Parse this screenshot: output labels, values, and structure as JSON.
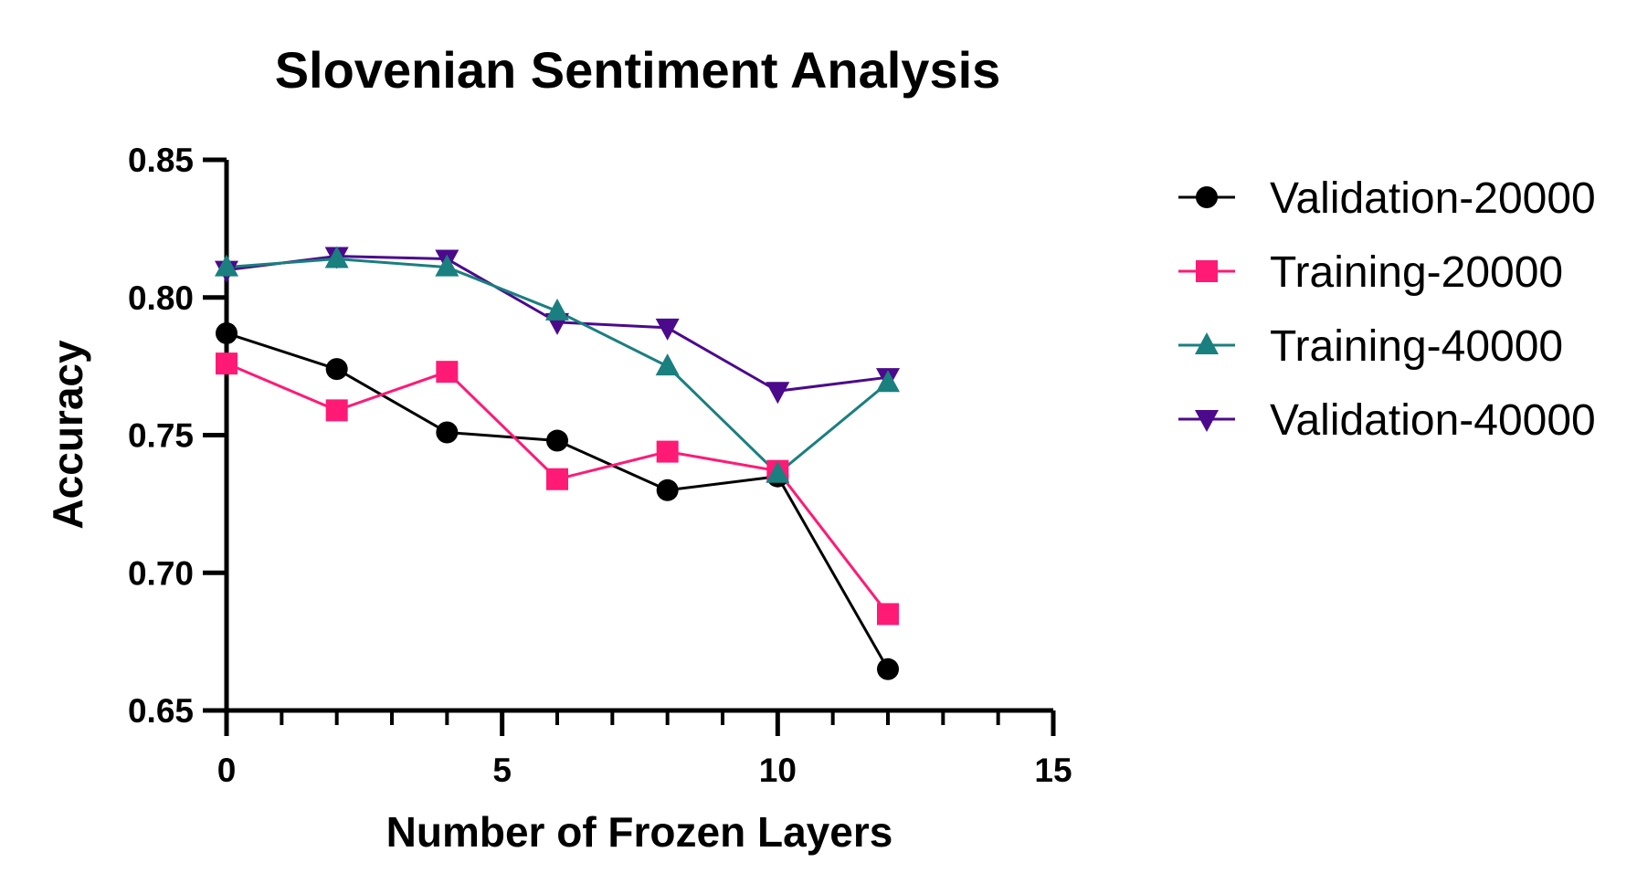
{
  "chart_data": {
    "type": "line",
    "title": "Slovenian Sentiment Analysis",
    "xlabel": "Number of Frozen  Layers",
    "ylabel": "Accuracy",
    "xlim": [
      0,
      15
    ],
    "ylim": [
      0.65,
      0.85
    ],
    "x_ticks": [
      "0",
      "5",
      "10",
      "15"
    ],
    "y_ticks": [
      "0.65",
      "0.70",
      "0.75",
      "0.80",
      "0.85"
    ],
    "grid": false,
    "legend_position": "right",
    "x": [
      0,
      2,
      4,
      6,
      8,
      10,
      12
    ],
    "series": [
      {
        "name": "Validation-20000",
        "marker": "circle",
        "color": "#000000",
        "values": [
          0.787,
          0.774,
          0.751,
          0.748,
          0.73,
          0.735,
          0.665
        ]
      },
      {
        "name": "Training-20000",
        "marker": "square",
        "color": "#ff1a75",
        "values": [
          0.776,
          0.759,
          0.773,
          0.734,
          0.744,
          0.737,
          0.685
        ]
      },
      {
        "name": "Training-40000",
        "marker": "triangle-up",
        "color": "#1a7f7f",
        "values": [
          0.811,
          0.814,
          0.811,
          0.795,
          0.775,
          0.736,
          0.769
        ]
      },
      {
        "name": "Validation-40000",
        "marker": "triangle-down",
        "color": "#4b0a8c",
        "values": [
          0.81,
          0.815,
          0.814,
          0.791,
          0.789,
          0.766,
          0.771
        ]
      }
    ]
  }
}
